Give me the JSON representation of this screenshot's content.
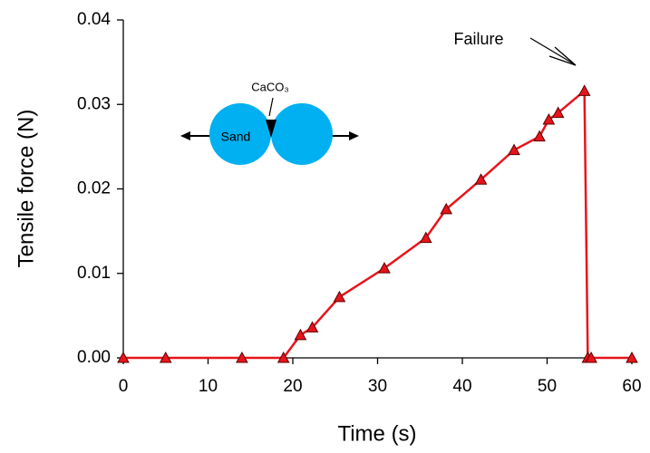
{
  "chart_data": {
    "type": "line",
    "x_label": "Time (s)",
    "y_label": "Tensile force (N)",
    "annotations": [
      "Failure",
      "CaCO₃",
      "Sand"
    ],
    "x": [
      0,
      5,
      14,
      18.9,
      20.9,
      22.3,
      25.5,
      30.8,
      35.7,
      38.1,
      42.2,
      46.1,
      49.1,
      50.2,
      51.3,
      54.4,
      54.8,
      55.2,
      60
    ],
    "series": [
      {
        "name": "Tensile force",
        "color": "#e8141b",
        "values": [
          0,
          0,
          0,
          0,
          0.0027,
          0.0036,
          0.0072,
          0.0106,
          0.0142,
          0.0176,
          0.0211,
          0.0246,
          0.0262,
          0.0282,
          0.029,
          0.0316,
          0,
          0,
          0
        ]
      }
    ],
    "xlim": [
      0,
      60
    ],
    "ylim": [
      0,
      0.04
    ],
    "xticks": [
      0,
      10,
      20,
      30,
      40,
      50,
      60
    ],
    "yticks": [
      {
        "value": 0,
        "label": "0.00"
      },
      {
        "value": 0.01,
        "label": "0.01"
      },
      {
        "value": 0.02,
        "label": "0.02"
      },
      {
        "value": 0.03,
        "label": "0.03"
      },
      {
        "value": 0.04,
        "label": "0.04"
      }
    ]
  }
}
